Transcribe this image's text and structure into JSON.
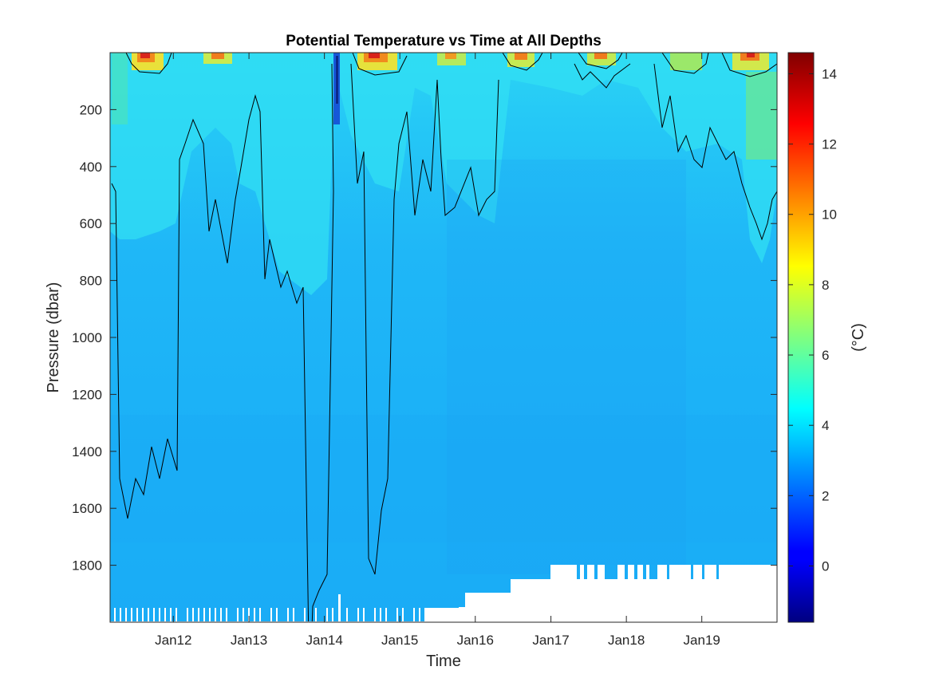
{
  "chart_data": {
    "type": "heatmap",
    "title": "Potential Temperature vs Time at All Depths",
    "xlabel": "Time",
    "ylabel": "Pressure (dbar)",
    "colorbar_label": "(°C)",
    "colormap": "jet",
    "xlim": [
      "2011-03-01",
      "2019-12-31"
    ],
    "x_ticks": [
      "Jan12",
      "Jan13",
      "Jan14",
      "Jan15",
      "Jan16",
      "Jan17",
      "Jan18",
      "Jan19"
    ],
    "ylim": [
      0,
      2000
    ],
    "y_reversed": true,
    "y_ticks": [
      200,
      400,
      600,
      800,
      1000,
      1200,
      1400,
      1600,
      1800
    ],
    "clim": [
      -1.6,
      14.6
    ],
    "colorbar_ticks": [
      0,
      2,
      4,
      6,
      8,
      10,
      12,
      14
    ],
    "contour_lines": true,
    "grid": false,
    "legend": "none",
    "description_values": {
      "deep_temperature_approx": 3.3,
      "surface_summer_max_approx": 14
    }
  }
}
